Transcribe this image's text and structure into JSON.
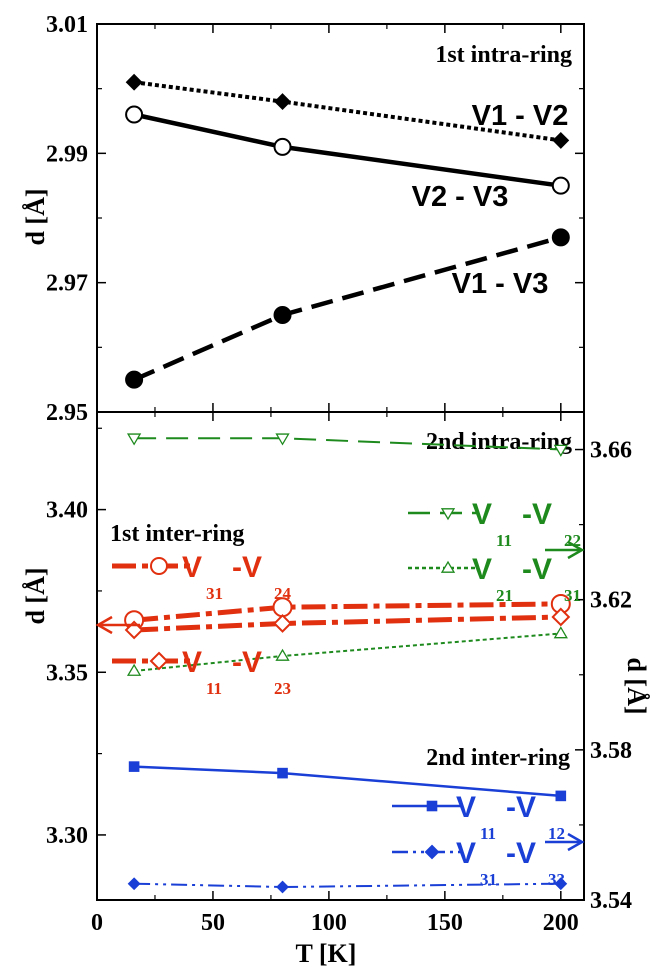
{
  "chart_data": [
    {
      "type": "line",
      "title": "1st intra-ring",
      "xlabel": "",
      "ylabel": "d [Å]",
      "xlim": [
        0,
        210
      ],
      "ylim": [
        2.95,
        3.01
      ],
      "yticks": [
        "2.95",
        "2.97",
        "2.99",
        "3.01"
      ],
      "series": [
        {
          "name": "V1 - V2",
          "color": "#000000",
          "marker": "filled-diamond",
          "line": "dotted",
          "x": [
            16,
            80,
            200
          ],
          "y": [
            3.001,
            2.998,
            2.992
          ]
        },
        {
          "name": "V2 - V3",
          "color": "#000000",
          "marker": "open-circle",
          "line": "solid",
          "x": [
            16,
            80,
            200
          ],
          "y": [
            2.996,
            2.991,
            2.985
          ]
        },
        {
          "name": "V1 - V3",
          "color": "#000000",
          "marker": "filled-circle",
          "line": "dashed",
          "x": [
            16,
            80,
            200
          ],
          "y": [
            2.955,
            2.965,
            2.977
          ]
        }
      ]
    },
    {
      "type": "line",
      "xlabel": "T [K]",
      "ylabel": "d [Å]",
      "ylabel_right": "d [Å]",
      "xlim": [
        0,
        210
      ],
      "ylim": [
        3.28,
        3.43
      ],
      "ylim_right": [
        3.54,
        3.67
      ],
      "xticks": [
        "0",
        "50",
        "100",
        "150",
        "200"
      ],
      "yticks": [
        "3.30",
        "3.35",
        "3.40"
      ],
      "yticks_right": [
        "3.54",
        "3.58",
        "3.62",
        "3.66"
      ],
      "annotations": [
        "2nd intra-ring",
        "1st inter-ring",
        "2nd inter-ring"
      ],
      "series": [
        {
          "name": "V31-V24",
          "main": "V",
          "sub1": "31",
          "sub2": "24",
          "color": "#e03010",
          "marker": "open-circle",
          "line": "dashdot",
          "axis": "left",
          "x": [
            16,
            80,
            200
          ],
          "y": [
            3.366,
            3.37,
            3.371
          ]
        },
        {
          "name": "V11-V23",
          "main": "V",
          "sub1": "11",
          "sub2": "23",
          "color": "#e03010",
          "marker": "open-diamond",
          "line": "dashdot",
          "axis": "left",
          "x": [
            16,
            80,
            200
          ],
          "y": [
            3.363,
            3.365,
            3.367
          ]
        },
        {
          "name": "V11-V22",
          "main": "V",
          "sub1": "11",
          "sub2": "22",
          "color": "#1e8a1e",
          "marker": "open-triangle-down",
          "line": "dashed",
          "axis": "right",
          "x": [
            16,
            80,
            200
          ],
          "y": [
            3.663,
            3.663,
            3.66
          ]
        },
        {
          "name": "V21-V31",
          "main": "V",
          "sub1": "21",
          "sub2": "31",
          "color": "#1e8a1e",
          "marker": "open-triangle-up",
          "line": "dotted",
          "axis": "right",
          "x": [
            16,
            80,
            200
          ],
          "y": [
            3.601,
            3.605,
            3.611
          ]
        },
        {
          "name": "V11-V12",
          "main": "V",
          "sub1": "11",
          "sub2": "12",
          "color": "#1a3fd6",
          "marker": "filled-square",
          "line": "solid",
          "axis": "left",
          "x": [
            16,
            80,
            200
          ],
          "y": [
            3.321,
            3.319,
            3.312
          ]
        },
        {
          "name": "V31-V33",
          "main": "V",
          "sub1": "31",
          "sub2": "33",
          "color": "#1a3fd6",
          "marker": "filled-diamond",
          "line": "dashdotdot",
          "axis": "left",
          "x": [
            16,
            80,
            200
          ],
          "y": [
            3.285,
            3.284,
            3.285
          ]
        }
      ]
    }
  ]
}
